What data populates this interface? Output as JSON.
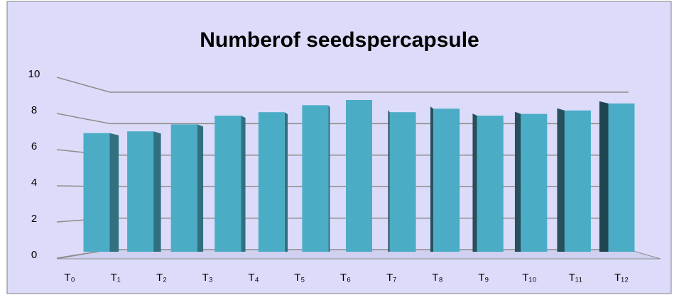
{
  "chart_data": {
    "type": "bar3d",
    "title": "Numberof seedspercapsule",
    "categories": [
      "T₀",
      "T₁",
      "T₂",
      "T₃",
      "T₄",
      "T₅",
      "T₆",
      "T₇",
      "T₈",
      "T₉",
      "T₁₀",
      "T₁₁",
      "T₁₂"
    ],
    "values": [
      6.8,
      6.9,
      7.3,
      7.8,
      8.0,
      8.4,
      8.7,
      8.0,
      8.2,
      7.8,
      7.9,
      8.1,
      8.5
    ],
    "color": "#4bacc6",
    "ylim": [
      0,
      10
    ],
    "yticks": [
      0,
      2,
      4,
      6,
      8,
      10
    ],
    "grid": true
  }
}
